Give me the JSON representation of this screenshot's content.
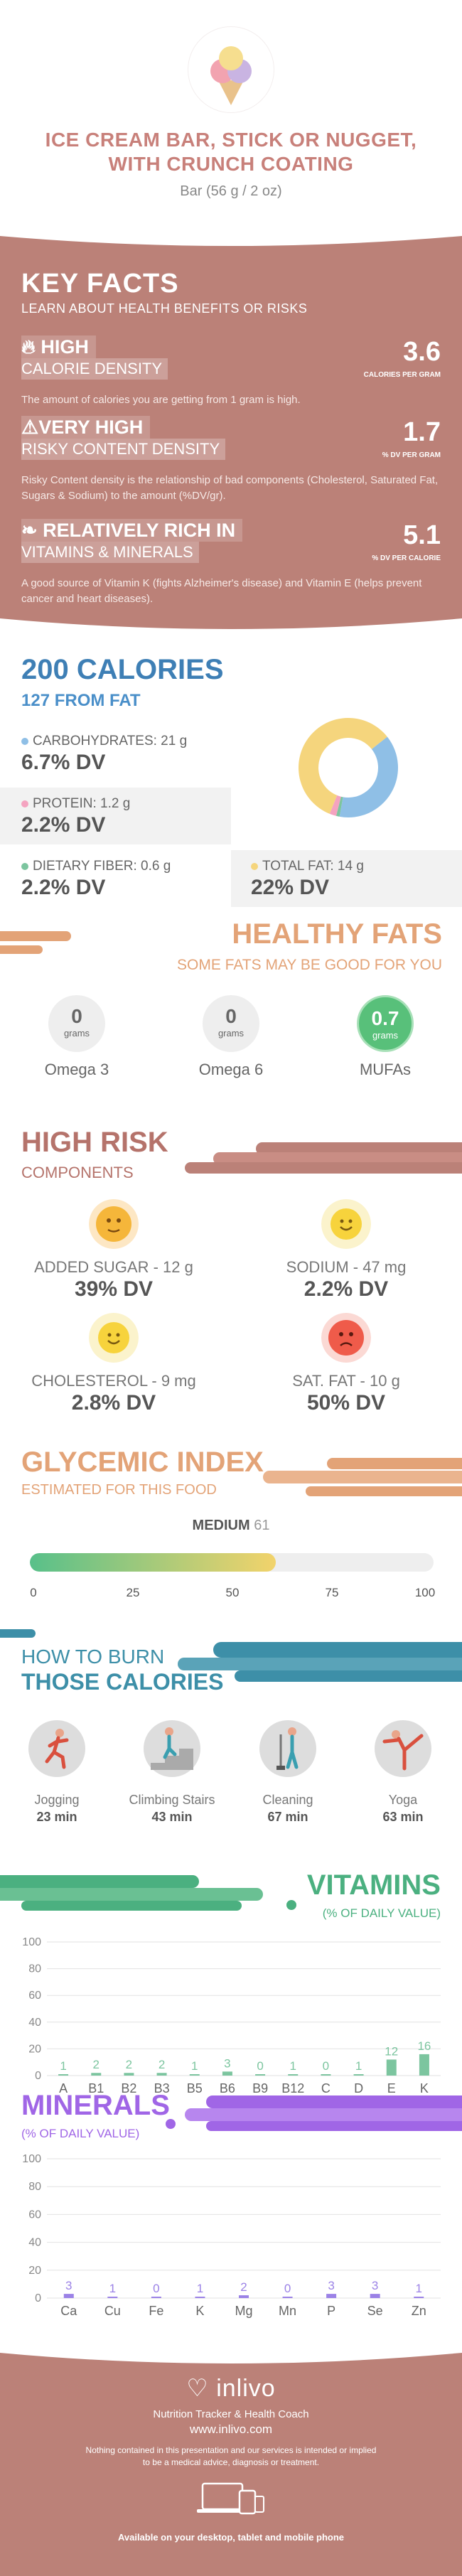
{
  "header": {
    "title": "ICE CREAM BAR, STICK OR NUGGET, WITH CRUNCH COATING",
    "serving": "Bar (56 g / 2 oz)"
  },
  "key_facts": {
    "title": "KEY FACTS",
    "subtitle": "LEARN ABOUT HEALTH BENEFITS OR RISKS",
    "items": [
      {
        "level": "HIGH",
        "label": "CALORIE DENSITY",
        "value": "3.6",
        "unit": "CALORIES PER GRAM",
        "desc": "The amount of calories you are getting from 1 gram is high.",
        "icon": "flame-icon"
      },
      {
        "level": "VERY HIGH",
        "label": "RISKY CONTENT DENSITY",
        "value": "1.7",
        "unit": "% DV PER GRAM",
        "desc": "Risky Content density is the relationship of bad components (Cholesterol, Saturated Fat, Sugars & Sodium) to the amount (%DV/gr).",
        "icon": "warning-icon"
      },
      {
        "level": "RELATIVELY RICH  IN",
        "label": "VITAMINS & MINERALS",
        "value": "5.1",
        "unit": "% DV PER CALORIE",
        "desc": "A good source of Vitamin K (fights Alzheimer's disease) and Vitamin E (helps prevent cancer and heart diseases).",
        "icon": "leaf-icon"
      }
    ]
  },
  "calories": {
    "total": "200 CALORIES",
    "from_fat": "127 FROM FAT",
    "macros": [
      {
        "label": "CARBOHYDRATES: 21 g",
        "dv": "6.7% DV",
        "color": "#8fbfe6"
      },
      {
        "label": "PROTEIN: 1.2 g",
        "dv": "2.2% DV",
        "color": "#f4a3c0"
      },
      {
        "label": "DIETARY FIBER: 0.6 g",
        "dv": "2.2% DV",
        "color": "#7cc59f"
      },
      {
        "label": "TOTAL FAT: 14 g",
        "dv": "22% DV",
        "color": "#f5d57d"
      }
    ],
    "donut": [
      {
        "name": "carbohydrates",
        "value": 84,
        "color": "#8fbfe6"
      },
      {
        "name": "fiber",
        "value": 2.4,
        "color": "#7cc59f"
      },
      {
        "name": "protein",
        "value": 4.8,
        "color": "#f4a3c0"
      },
      {
        "name": "fat",
        "value": 127,
        "color": "#f5d57d"
      }
    ]
  },
  "healthy_fats": {
    "title": "HEALTHY FATS",
    "subtitle": "SOME FATS MAY BE GOOD FOR YOU",
    "unit": "grams",
    "items": [
      {
        "name": "Omega 3",
        "value": "0",
        "color": "#eeeeee",
        "text_color": "#666666"
      },
      {
        "name": "Omega 6",
        "value": "0",
        "color": "#eeeeee",
        "text_color": "#666666"
      },
      {
        "name": "MUFAs",
        "value": "0.7",
        "color": "#58c07a",
        "text_color": "#ffffff"
      }
    ]
  },
  "high_risk": {
    "title": "HIGH RISK",
    "subtitle": "COMPONENTS",
    "items": [
      {
        "label": "ADDED SUGAR - 12 g",
        "dv": "39% DV",
        "face": "neutral",
        "color": "#f5b63a"
      },
      {
        "label": "SODIUM - 47 mg",
        "dv": "2.2% DV",
        "face": "happy",
        "color": "#f7d33c"
      },
      {
        "label": "CHOLESTEROL - 9 mg",
        "dv": "2.8% DV",
        "face": "happy",
        "color": "#f7d33c"
      },
      {
        "label": "SAT. FAT - 10 g",
        "dv": "50% DV",
        "face": "sad",
        "color": "#ef5b4a"
      }
    ]
  },
  "glycemic": {
    "title": "GLYCEMIC INDEX",
    "subtitle": "ESTIMATED FOR THIS FOOD",
    "level": "MEDIUM",
    "value": 61,
    "ticks": [
      "0",
      "25",
      "50",
      "75",
      "100"
    ]
  },
  "burn": {
    "title_line1": "HOW TO BURN",
    "title_line2": "THOSE CALORIES",
    "activities": [
      {
        "name": "Jogging",
        "minutes": "23 min",
        "icon": "jogging-icon"
      },
      {
        "name": "Climbing Stairs",
        "minutes": "43 min",
        "icon": "stairs-icon"
      },
      {
        "name": "Cleaning",
        "minutes": "67 min",
        "icon": "cleaning-icon"
      },
      {
        "name": "Yoga",
        "minutes": "63 min",
        "icon": "yoga-icon"
      }
    ]
  },
  "vitamins": {
    "title": "VITAMINS",
    "subtitle": "(% OF DAILY VALUE)",
    "chart_data": {
      "type": "bar",
      "categories": [
        "A",
        "B1",
        "B2",
        "B3",
        "B5",
        "B6",
        "B9",
        "B12",
        "C",
        "D",
        "E",
        "K"
      ],
      "values": [
        1,
        2,
        2,
        2,
        1,
        3,
        0,
        1,
        0,
        1,
        12,
        16
      ],
      "ylim": [
        0,
        100
      ],
      "yticks": [
        "0",
        "20",
        "40",
        "60",
        "80",
        "100"
      ],
      "color": "#7cc59f",
      "grid": true
    }
  },
  "minerals": {
    "title": "MINERALS",
    "subtitle": "(% OF DAILY VALUE)",
    "chart_data": {
      "type": "bar",
      "categories": [
        "Ca",
        "Cu",
        "Fe",
        "K",
        "Mg",
        "Mn",
        "P",
        "Se",
        "Zn"
      ],
      "values": [
        3,
        1,
        0,
        1,
        2,
        0,
        3,
        3,
        1
      ],
      "ylim": [
        0,
        100
      ],
      "yticks": [
        "0",
        "20",
        "40",
        "60",
        "80",
        "100"
      ],
      "color": "#9b82e6",
      "grid": true
    }
  },
  "footer": {
    "brand": "inlivo",
    "tagline": "Nutrition Tracker & Health Coach",
    "url": "www.inlivo.com",
    "disclaimer1": "Nothing contained in this presentation and our services is intended or implied",
    "disclaimer2": "to be a medical advice, diagnosis or treatment.",
    "availability": "Available on your desktop, tablet and mobile phone"
  },
  "colors": {
    "brand": "#bb8178",
    "blue": "#3e7fb5",
    "orange": "#e3a377",
    "teal": "#3d8fa8",
    "green": "#4bb080",
    "purple": "#a066e6"
  }
}
